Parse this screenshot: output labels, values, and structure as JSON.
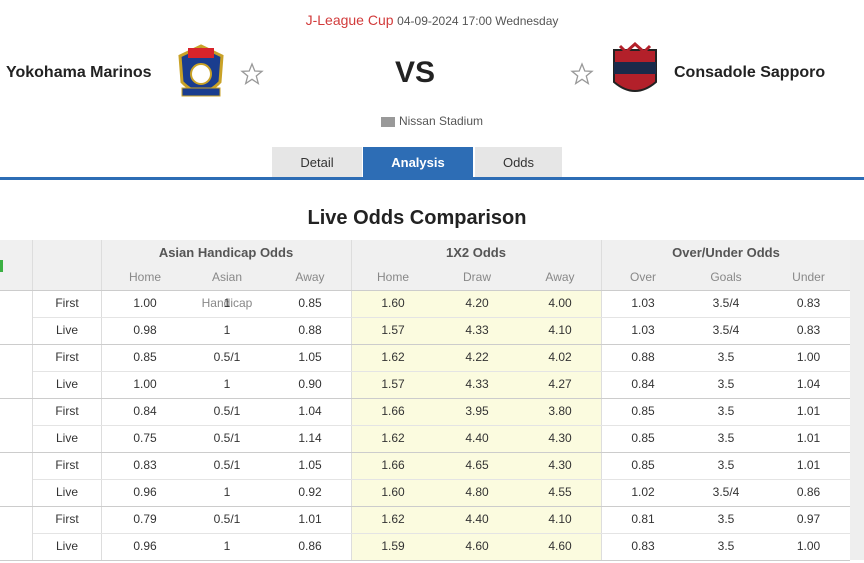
{
  "header": {
    "competition": "J-League Cup",
    "datetime": "04-09-2024 17:00 Wednesday",
    "home_team": "Yokohama Marinos",
    "away_team": "Consadole Sapporo",
    "vs": "VS",
    "stadium": "Nissan Stadium"
  },
  "tabs": [
    "Detail",
    "Analysis",
    "Odds"
  ],
  "active_tab": 1,
  "section_title": "Live Odds Comparison",
  "table": {
    "groups": [
      {
        "title": "Asian Handicap Odds",
        "columns": [
          "Home",
          "Asian Handicap",
          "Away"
        ]
      },
      {
        "title": "1X2 Odds",
        "columns": [
          "Home",
          "Draw",
          "Away"
        ]
      },
      {
        "title": "Over/Under Odds",
        "columns": [
          "Over",
          "Goals",
          "Under"
        ]
      }
    ],
    "rows": [
      [
        "First",
        "1.00",
        "1",
        "0.85",
        "1.60",
        "4.20",
        "4.00",
        "1.03",
        "3.5/4",
        "0.83"
      ],
      [
        "Live",
        "0.98",
        "1",
        "0.88",
        "1.57",
        "4.33",
        "4.10",
        "1.03",
        "3.5/4",
        "0.83"
      ],
      [
        "First",
        "0.85",
        "0.5/1",
        "1.05",
        "1.62",
        "4.22",
        "4.02",
        "0.88",
        "3.5",
        "1.00"
      ],
      [
        "Live",
        "1.00",
        "1",
        "0.90",
        "1.57",
        "4.33",
        "4.27",
        "0.84",
        "3.5",
        "1.04"
      ],
      [
        "First",
        "0.84",
        "0.5/1",
        "1.04",
        "1.66",
        "3.95",
        "3.80",
        "0.85",
        "3.5",
        "1.01"
      ],
      [
        "Live",
        "0.75",
        "0.5/1",
        "1.14",
        "1.62",
        "4.40",
        "4.30",
        "0.85",
        "3.5",
        "1.01"
      ],
      [
        "First",
        "0.83",
        "0.5/1",
        "1.05",
        "1.66",
        "4.65",
        "4.30",
        "0.85",
        "3.5",
        "1.01"
      ],
      [
        "Live",
        "0.96",
        "1",
        "0.92",
        "1.60",
        "4.80",
        "4.55",
        "1.02",
        "3.5/4",
        "0.86"
      ],
      [
        "First",
        "0.79",
        "0.5/1",
        "1.01",
        "1.62",
        "4.40",
        "4.10",
        "0.81",
        "3.5",
        "0.97"
      ],
      [
        "Live",
        "0.96",
        "1",
        "0.86",
        "1.59",
        "4.60",
        "4.60",
        "0.83",
        "3.5",
        "1.00"
      ]
    ]
  }
}
